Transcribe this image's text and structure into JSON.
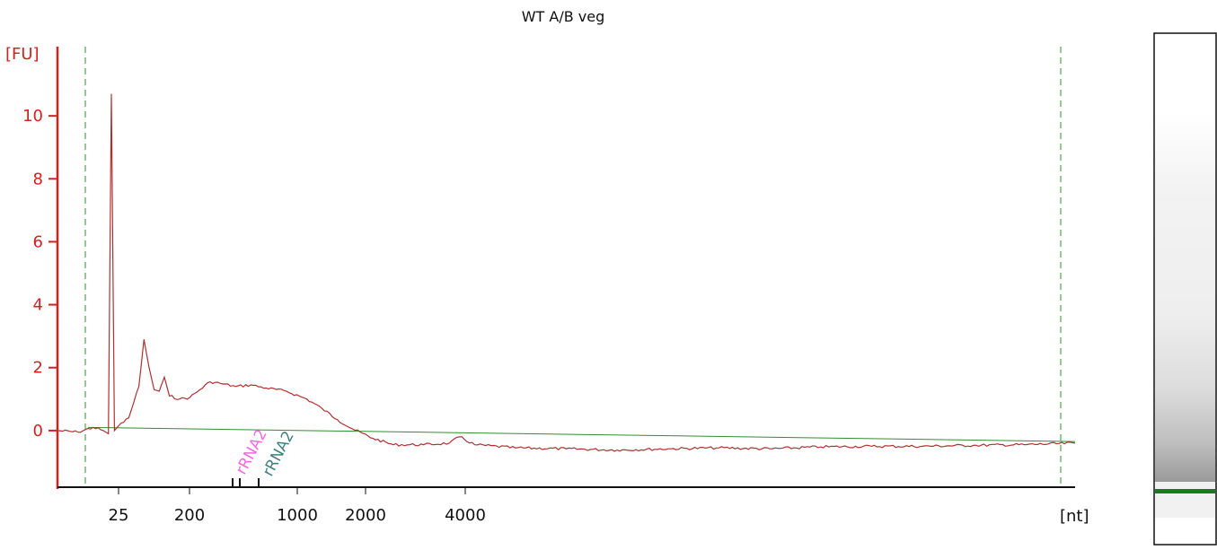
{
  "chart_data": {
    "type": "line",
    "title": "WT A/B veg",
    "ylabel": "[FU]",
    "xlabel": "[nt]",
    "ylim": [
      -1.8,
      12.2
    ],
    "y_ticks": [
      0,
      2,
      4,
      6,
      8,
      10
    ],
    "x_tick_labels": [
      "25",
      "200",
      "1000",
      "2000",
      "4000"
    ],
    "x_unit": "[nt]",
    "grid": false,
    "colors": {
      "axis": "#d42020",
      "trace": "#b03030",
      "baseline": "#2f8f2f",
      "marker_line": "#2f8f2f",
      "annotation_pink": "#f06ae0",
      "annotation_teal": "#3f7f7f",
      "gel_band": "#157f15"
    },
    "annotations": [
      {
        "label": "rRNA2",
        "color": "pink"
      },
      {
        "label": "rRNA2",
        "color": "teal"
      }
    ],
    "series": [
      {
        "points": [
          [
            0.0,
            0.0
          ],
          [
            0.02,
            -0.05
          ],
          [
            0.035,
            0.1
          ],
          [
            0.045,
            0.0
          ],
          [
            0.05,
            -0.1
          ],
          [
            0.053,
            10.7
          ],
          [
            0.056,
            0.0
          ],
          [
            0.06,
            0.15
          ],
          [
            0.07,
            0.4
          ],
          [
            0.08,
            1.4
          ],
          [
            0.085,
            2.9
          ],
          [
            0.09,
            2.0
          ],
          [
            0.095,
            1.3
          ],
          [
            0.1,
            1.25
          ],
          [
            0.105,
            1.7
          ],
          [
            0.11,
            1.1
          ],
          [
            0.12,
            1.0
          ],
          [
            0.13,
            1.05
          ],
          [
            0.14,
            1.3
          ],
          [
            0.15,
            1.55
          ],
          [
            0.16,
            1.5
          ],
          [
            0.175,
            1.4
          ],
          [
            0.19,
            1.45
          ],
          [
            0.205,
            1.35
          ],
          [
            0.225,
            1.25
          ],
          [
            0.245,
            1.0
          ],
          [
            0.26,
            0.7
          ],
          [
            0.275,
            0.35
          ],
          [
            0.29,
            0.05
          ],
          [
            0.31,
            -0.25
          ],
          [
            0.33,
            -0.45
          ],
          [
            0.36,
            -0.45
          ],
          [
            0.385,
            -0.4
          ],
          [
            0.395,
            -0.2
          ],
          [
            0.41,
            -0.45
          ],
          [
            0.45,
            -0.55
          ],
          [
            0.5,
            -0.58
          ],
          [
            0.55,
            -0.62
          ],
          [
            0.6,
            -0.58
          ],
          [
            0.65,
            -0.55
          ],
          [
            0.7,
            -0.58
          ],
          [
            0.75,
            -0.52
          ],
          [
            0.8,
            -0.5
          ],
          [
            0.85,
            -0.5
          ],
          [
            0.9,
            -0.47
          ],
          [
            0.95,
            -0.45
          ],
          [
            1.0,
            -0.4
          ]
        ]
      }
    ],
    "baseline": [
      [
        0.03,
        0.1
      ],
      [
        1.0,
        -0.35
      ]
    ]
  }
}
